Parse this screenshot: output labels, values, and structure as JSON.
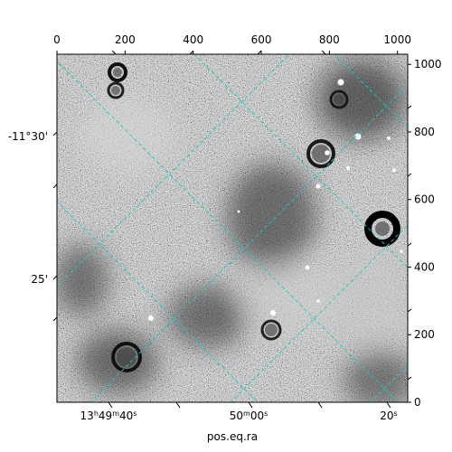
{
  "chart_data": {
    "type": "image",
    "title": "",
    "xlabel": "pos.eq.ra",
    "ylabel": "",
    "pixel_axes": {
      "x_ticks": [
        "0",
        "200",
        "400",
        "600",
        "800",
        "1000"
      ],
      "y_ticks": [
        "0",
        "200",
        "400",
        "600",
        "800",
        "1000"
      ],
      "xlim": [
        0,
        1030
      ],
      "ylim": [
        0,
        1030
      ]
    },
    "world_axes": {
      "ra_ticks": [
        {
          "h": "13",
          "hsup": "h",
          "m": "49",
          "msup": "m",
          "s": "40",
          "ssup": "s"
        },
        {
          "h": "",
          "hsup": "",
          "m": "50",
          "msup": "m",
          "s": "00",
          "ssup": "s"
        },
        {
          "h": "",
          "hsup": "",
          "m": "",
          "msup": "",
          "s": "20",
          "ssup": "s"
        }
      ],
      "dec_ticks": [
        "-11°30'",
        "25'"
      ]
    },
    "grid": true,
    "grid_color": "#19c9c9",
    "colormap": "grayscale",
    "bright_sources": 13,
    "dark_rings": 7
  }
}
